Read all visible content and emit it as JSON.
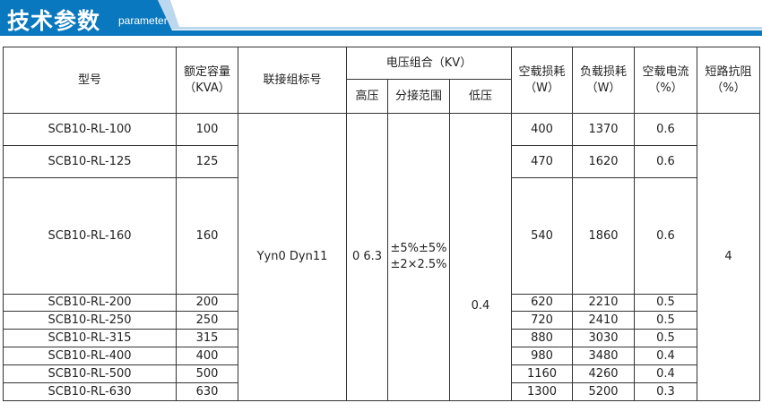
{
  "header": {
    "title": "技术参数",
    "subtitle": "parameter",
    "accent": "#0a78be"
  },
  "columns": {
    "model": "型号",
    "capacity": "额定容量",
    "capacity_unit": "（KVA）",
    "group": "联接组标号",
    "voltage": "电压组合（KV）",
    "hv": "高压",
    "tap": "分接范围",
    "lv": "低压",
    "noload_loss": "空载损耗",
    "noload_unit": "（W）",
    "load_loss": "负载损耗",
    "load_unit": "（W）",
    "noload_current": "空载电流",
    "current_unit": "（%）",
    "impedance": "短路抗阻",
    "impedance_unit": "（%）"
  },
  "merged": {
    "group": "Yyn0   Dyn11",
    "hv": "0   6.3",
    "tap_line1": "±5%±5%",
    "tap_line2": "±2×2.5%",
    "lv": "0.4",
    "impedance": "4"
  },
  "rows": [
    {
      "model": "SCB10-RL-100",
      "kva": "100",
      "noload": "400",
      "load": "1370",
      "current": "0.6"
    },
    {
      "model": "SCB10-RL-125",
      "kva": "125",
      "noload": "470",
      "load": "1620",
      "current": "0.6"
    },
    {
      "model": "SCB10-RL-160",
      "kva": "160",
      "noload": "540",
      "load": "1860",
      "current": "0.6"
    },
    {
      "model": "SCB10-RL-200",
      "kva": "200",
      "noload": "620",
      "load": "2210",
      "current": "0.5"
    },
    {
      "model": "SCB10-RL-250",
      "kva": "250",
      "noload": "720",
      "load": "2410",
      "current": "0.5"
    },
    {
      "model": "SCB10-RL-315",
      "kva": "315",
      "noload": "880",
      "load": "3030",
      "current": "0.5"
    },
    {
      "model": "SCB10-RL-400",
      "kva": "400",
      "noload": "980",
      "load": "3480",
      "current": "0.4"
    },
    {
      "model": "SCB10-RL-500",
      "kva": "500",
      "noload": "1160",
      "load": "4260",
      "current": "0.4"
    },
    {
      "model": "SCB10-RL-630",
      "kva": "630",
      "noload": "1300",
      "load": "5200",
      "current": "0.3"
    }
  ]
}
